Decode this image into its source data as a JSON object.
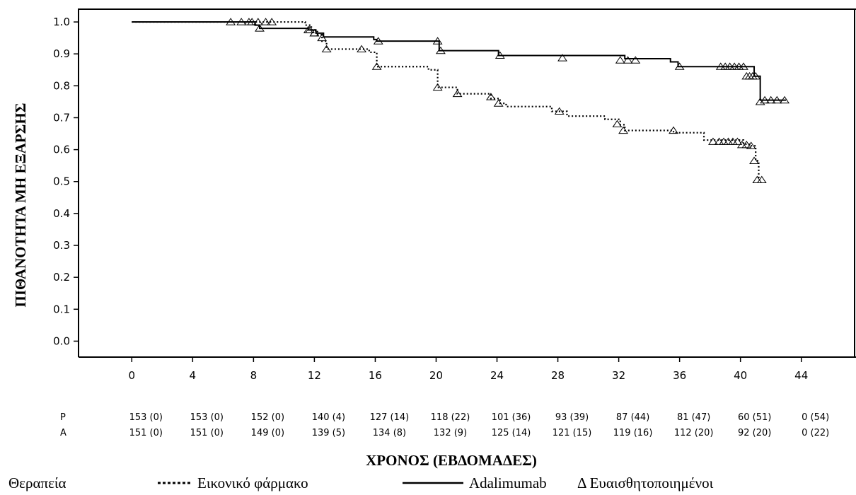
{
  "chart_data": {
    "type": "line",
    "title": "",
    "ylabel": "ΠΙΘΑΝΟΤΗΤΑ ΜΗ ΕΞΑΡΣΗΣ",
    "xlabel": "ΧΡΟΝΟΣ (ΕΒΔΟΜΑΔΕΣ)",
    "xlim": [
      -3.5,
      47.5
    ],
    "ylim": [
      -0.05,
      1.04
    ],
    "x_ticks": [
      "0",
      "4",
      "8",
      "12",
      "16",
      "20",
      "24",
      "28",
      "32",
      "36",
      "40",
      "44"
    ],
    "y_ticks": [
      "0.0",
      "0.1",
      "0.2",
      "0.3",
      "0.4",
      "0.5",
      "0.6",
      "0.7",
      "0.8",
      "0.9",
      "1.0"
    ],
    "series": [
      {
        "name": "Αdalimumab",
        "style": "solid",
        "color": "#000000",
        "steps": [
          [
            0,
            1.0
          ],
          [
            8.1,
            0.99
          ],
          [
            8.4,
            0.98
          ],
          [
            11.6,
            0.975
          ],
          [
            12.1,
            0.965
          ],
          [
            12.6,
            0.953
          ],
          [
            15.9,
            0.945
          ],
          [
            16.1,
            0.94
          ],
          [
            20.2,
            0.91
          ],
          [
            24.1,
            0.895
          ],
          [
            32.4,
            0.885
          ],
          [
            35.4,
            0.875
          ],
          [
            35.9,
            0.86
          ],
          [
            40.9,
            0.83
          ],
          [
            41.3,
            0.755
          ],
          [
            43.0,
            0.755
          ]
        ],
        "censored": [
          [
            6.5,
            1.0
          ],
          [
            7.2,
            1.0
          ],
          [
            7.7,
            1.0
          ],
          [
            7.9,
            1.0
          ],
          [
            8.4,
            0.98
          ],
          [
            11.6,
            0.975
          ],
          [
            12.0,
            0.965
          ],
          [
            16.2,
            0.94
          ],
          [
            20.1,
            0.94
          ],
          [
            20.3,
            0.91
          ],
          [
            24.2,
            0.895
          ],
          [
            28.3,
            0.887
          ],
          [
            32.1,
            0.88
          ],
          [
            32.6,
            0.88
          ],
          [
            33.1,
            0.88
          ],
          [
            36.0,
            0.86
          ],
          [
            38.7,
            0.86
          ],
          [
            39.0,
            0.86
          ],
          [
            39.3,
            0.86
          ],
          [
            39.6,
            0.86
          ],
          [
            39.9,
            0.86
          ],
          [
            40.2,
            0.86
          ],
          [
            40.4,
            0.83
          ],
          [
            40.6,
            0.83
          ],
          [
            40.8,
            0.83
          ],
          [
            41.0,
            0.83
          ],
          [
            41.3,
            0.75
          ],
          [
            41.6,
            0.755
          ],
          [
            42.0,
            0.755
          ],
          [
            42.4,
            0.755
          ],
          [
            42.9,
            0.755
          ]
        ]
      },
      {
        "name": "Εικονικό φάρμακο",
        "style": "dotted",
        "color": "#000000",
        "steps": [
          [
            0,
            1.0
          ],
          [
            11.4,
            0.99
          ],
          [
            11.8,
            0.975
          ],
          [
            12.2,
            0.96
          ],
          [
            12.5,
            0.94
          ],
          [
            12.8,
            0.915
          ],
          [
            15.6,
            0.905
          ],
          [
            16.1,
            0.86
          ],
          [
            19.5,
            0.85
          ],
          [
            20.1,
            0.795
          ],
          [
            21.4,
            0.775
          ],
          [
            23.6,
            0.76
          ],
          [
            24.2,
            0.745
          ],
          [
            24.6,
            0.735
          ],
          [
            27.6,
            0.72
          ],
          [
            28.6,
            0.705
          ],
          [
            31.1,
            0.695
          ],
          [
            32.1,
            0.678
          ],
          [
            32.4,
            0.66
          ],
          [
            35.6,
            0.653
          ],
          [
            37.6,
            0.63
          ],
          [
            40.2,
            0.617
          ],
          [
            40.6,
            0.612
          ],
          [
            41.0,
            0.565
          ],
          [
            41.2,
            0.505
          ]
        ],
        "censored": [
          [
            8.3,
            1.0
          ],
          [
            8.8,
            1.0
          ],
          [
            9.2,
            1.0
          ],
          [
            11.7,
            0.975
          ],
          [
            12.0,
            0.965
          ],
          [
            12.5,
            0.95
          ],
          [
            12.8,
            0.915
          ],
          [
            15.1,
            0.915
          ],
          [
            16.1,
            0.86
          ],
          [
            20.1,
            0.795
          ],
          [
            21.4,
            0.775
          ],
          [
            23.6,
            0.765
          ],
          [
            24.1,
            0.745
          ],
          [
            28.1,
            0.72
          ],
          [
            31.9,
            0.68
          ],
          [
            32.3,
            0.66
          ],
          [
            35.6,
            0.66
          ],
          [
            38.2,
            0.625
          ],
          [
            38.6,
            0.625
          ],
          [
            38.9,
            0.625
          ],
          [
            39.2,
            0.625
          ],
          [
            39.5,
            0.625
          ],
          [
            39.8,
            0.625
          ],
          [
            40.1,
            0.615
          ],
          [
            40.4,
            0.615
          ],
          [
            40.7,
            0.612
          ],
          [
            40.9,
            0.565
          ],
          [
            41.1,
            0.505
          ],
          [
            41.4,
            0.505
          ]
        ]
      }
    ],
    "risk_table": {
      "rows": [
        {
          "label": "P",
          "values": [
            "153 (0)",
            "153 (0)",
            "152 (0)",
            "140 (4)",
            "127 (14)",
            "118 (22)",
            "101 (36)",
            "93 (39)",
            "87 (44)",
            "81 (47)",
            "60 (51)",
            "0 (54)"
          ]
        },
        {
          "label": "A",
          "values": [
            "151 (0)",
            "151 (0)",
            "149 (0)",
            "139 (5)",
            "134 (8)",
            "132 (9)",
            "125 (14)",
            "121 (15)",
            "119 (16)",
            "112 (20)",
            "92 (20)",
            "0 (22)"
          ]
        }
      ],
      "x_values": [
        0,
        4,
        8,
        12,
        16,
        20,
        24,
        28,
        32,
        36,
        40,
        44
      ]
    },
    "legend": {
      "title": "Θεραπεία",
      "placebo_label": "Εικονικό φάρμακο",
      "adalimumab_label": "Αdalimumab",
      "censored_label": "Δ Ευαισθητοποιημένοι",
      "placement": "bottom"
    },
    "grid": false
  }
}
